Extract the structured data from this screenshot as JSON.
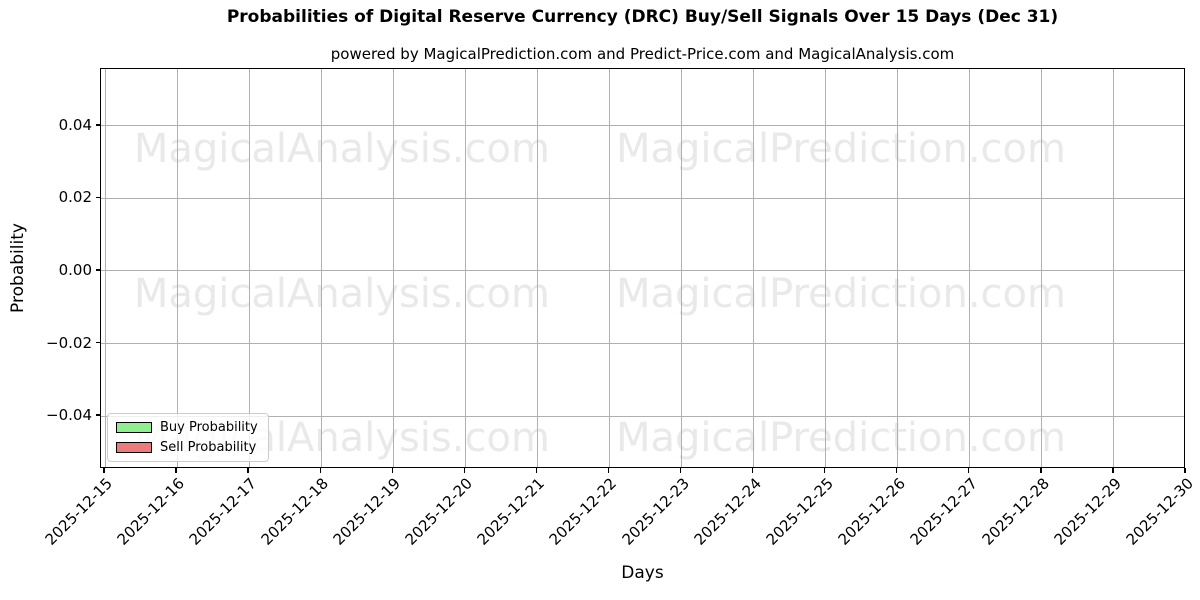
{
  "figure": {
    "title": "Probabilities of Digital Reserve Currency (DRC) Buy/Sell Signals Over 15 Days (Dec 31)",
    "subtitle": "powered by MagicalPrediction.com and Predict-Price.com and MagicalAnalysis.com"
  },
  "watermarks": {
    "left_text": "MagicalAnalysis.com",
    "right_text": "MagicalPrediction.com",
    "color": "#e9e9e9"
  },
  "chart_data": {
    "type": "line",
    "title": "Probabilities of Digital Reserve Currency (DRC) Buy/Sell Signals Over 15 Days (Dec 31)",
    "subtitle": "powered by MagicalPrediction.com and Predict-Price.com and MagicalAnalysis.com",
    "xlabel": "Days",
    "ylabel": "Probability",
    "x_tick_labels": [
      "2025-12-15",
      "2025-12-16",
      "2025-12-17",
      "2025-12-18",
      "2025-12-19",
      "2025-12-20",
      "2025-12-21",
      "2025-12-22",
      "2025-12-23",
      "2025-12-24",
      "2025-12-25",
      "2025-12-26",
      "2025-12-27",
      "2025-12-28",
      "2025-12-29",
      "2025-12-30"
    ],
    "y_tick_labels": [
      "0.04",
      "0.02",
      "0.00",
      "−0.02",
      "−0.04"
    ],
    "y_tick_values": [
      0.04,
      0.02,
      0.0,
      -0.02,
      -0.04
    ],
    "ylim": [
      -0.0546,
      0.0557
    ],
    "grid": true,
    "grid_color": "#b0b0b0",
    "legend": {
      "position": "lower left",
      "entries": [
        {
          "label": "Buy Probability",
          "color": "#90ee90",
          "edge_color": "#000000"
        },
        {
          "label": "Sell Probability",
          "color": "#ec7c7c",
          "edge_color": "#000000"
        }
      ]
    },
    "series": [
      {
        "name": "Buy Probability",
        "color": "#90ee90",
        "values": []
      },
      {
        "name": "Sell Probability",
        "color": "#ec7c7c",
        "values": []
      }
    ]
  }
}
